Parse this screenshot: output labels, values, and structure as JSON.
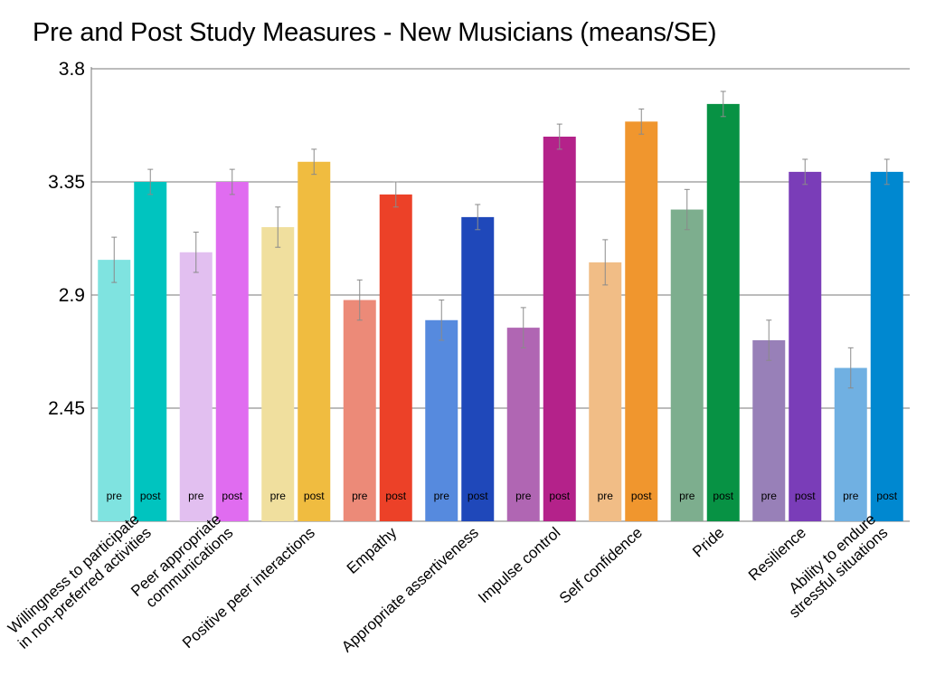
{
  "chart_data": {
    "type": "bar",
    "title": "Pre and Post Study Measures - New Musicians (means/SE)",
    "xlabel": "",
    "ylabel": "",
    "ylim": [
      2.0,
      3.8
    ],
    "yticks": [
      2.45,
      2.9,
      3.35,
      3.8
    ],
    "ytick_labels": [
      "2.45",
      "2.9",
      "3.35",
      "3.8"
    ],
    "grid": true,
    "bar_labels": {
      "pre": "pre",
      "post": "post"
    },
    "categories": [
      {
        "lines": [
          "Willingness to participate",
          "in non-preferred activities"
        ],
        "pre": 3.04,
        "post": 3.35,
        "pre_se": 0.09,
        "post_se": 0.05,
        "pre_color": "#7fe3e0",
        "post_color": "#00c4bf"
      },
      {
        "lines": [
          "Peer appropriate",
          "communications"
        ],
        "pre": 3.07,
        "post": 3.35,
        "pre_se": 0.08,
        "post_se": 0.05,
        "pre_color": "#e2bff0",
        "post_color": "#e06cf0"
      },
      {
        "lines": [
          "Positive peer interactions"
        ],
        "pre": 3.17,
        "post": 3.43,
        "pre_se": 0.08,
        "post_se": 0.05,
        "pre_color": "#f0df9e",
        "post_color": "#f0bc40"
      },
      {
        "lines": [
          "Empathy"
        ],
        "pre": 2.88,
        "post": 3.3,
        "pre_se": 0.08,
        "post_se": 0.05,
        "pre_color": "#ec8a78",
        "post_color": "#ec4128"
      },
      {
        "lines": [
          "Appropriate assertiveness"
        ],
        "pre": 2.8,
        "post": 3.21,
        "pre_se": 0.08,
        "post_se": 0.05,
        "pre_color": "#568ade",
        "post_color": "#1f48ba"
      },
      {
        "lines": [
          "Impulse control"
        ],
        "pre": 2.77,
        "post": 3.53,
        "pre_se": 0.08,
        "post_se": 0.05,
        "pre_color": "#b066b3",
        "post_color": "#b4228a"
      },
      {
        "lines": [
          "Self confidence"
        ],
        "pre": 3.03,
        "post": 3.59,
        "pre_se": 0.09,
        "post_se": 0.05,
        "pre_color": "#f1bd86",
        "post_color": "#f0962e"
      },
      {
        "lines": [
          "Pride"
        ],
        "pre": 3.24,
        "post": 3.66,
        "pre_se": 0.08,
        "post_se": 0.05,
        "pre_color": "#7dae8e",
        "post_color": "#079244"
      },
      {
        "lines": [
          "Resilience"
        ],
        "pre": 2.72,
        "post": 3.39,
        "pre_se": 0.08,
        "post_se": 0.05,
        "pre_color": "#9880b8",
        "post_color": "#7a3db8"
      },
      {
        "lines": [
          "Ability to endure",
          "stressful situations"
        ],
        "pre": 2.61,
        "post": 3.39,
        "pre_se": 0.08,
        "post_se": 0.05,
        "pre_color": "#70b0e2",
        "post_color": "#0088d0"
      }
    ]
  }
}
